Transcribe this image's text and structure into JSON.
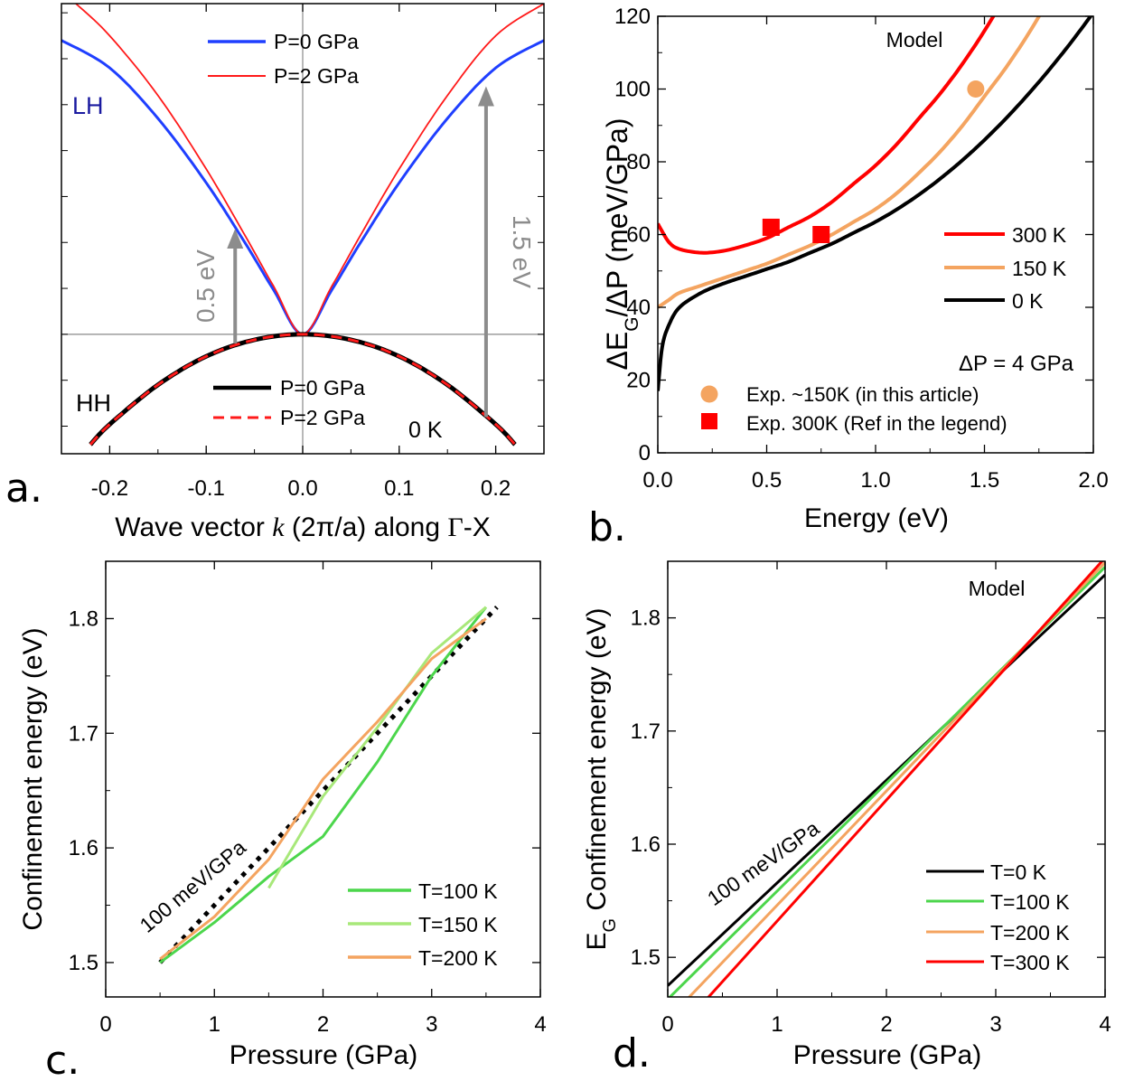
{
  "figure": {
    "panel_labels": [
      "a.",
      "b.",
      "c.",
      "d."
    ]
  },
  "chart_data": [
    {
      "panel": "a.",
      "type": "line",
      "xlabel": "Wave vector k (2π/a) along Γ-X",
      "xlim": [
        -0.25,
        0.25
      ],
      "ylim": [
        -0.13,
        0.36
      ],
      "x_ticks": [
        "-0.2",
        "-0.1",
        "0.0",
        "0.1",
        "0.2"
      ],
      "y_tick_labels_shown": false,
      "band_labels": [
        "LH",
        "HH"
      ],
      "temperature_label": "0 K",
      "arrows": [
        {
          "label": "0.5 eV",
          "x": -0.07,
          "from": -0.01,
          "to": 0.115
        },
        {
          "label": "1.5 eV",
          "x": 0.19,
          "from": -0.09,
          "to": 0.27
        }
      ],
      "series": [
        {
          "name": "P=0 GPa",
          "group": "LH",
          "color": "#1f3fff",
          "x": [
            -0.25,
            -0.2,
            -0.15,
            -0.1,
            -0.06,
            -0.03,
            0,
            0.03,
            0.06,
            0.1,
            0.15,
            0.2,
            0.25
          ],
          "y": [
            0.32,
            0.29,
            0.235,
            0.165,
            0.1,
            0.048,
            0,
            0.048,
            0.1,
            0.165,
            0.235,
            0.29,
            0.32
          ]
        },
        {
          "name": "P=2 GPa",
          "group": "LH",
          "color": "#ff1a1a",
          "x": [
            -0.235,
            -0.2,
            -0.15,
            -0.1,
            -0.06,
            -0.03,
            0,
            0.03,
            0.06,
            0.1,
            0.15,
            0.2,
            0.25
          ],
          "y": [
            0.36,
            0.325,
            0.26,
            0.18,
            0.108,
            0.052,
            0,
            0.052,
            0.108,
            0.18,
            0.26,
            0.325,
            0.36
          ]
        },
        {
          "name": "P=0 GPa",
          "group": "HH",
          "color": "#000000",
          "x": [
            -0.22,
            -0.2,
            -0.15,
            -0.1,
            -0.05,
            0,
            0.05,
            0.1,
            0.15,
            0.2,
            0.22
          ],
          "y": [
            -0.12,
            -0.098,
            -0.055,
            -0.024,
            -0.006,
            0,
            -0.006,
            -0.024,
            -0.055,
            -0.098,
            -0.12
          ]
        },
        {
          "name": "P=2 GPa",
          "group": "HH",
          "color": "#ff1a1a",
          "dashed": true,
          "x": [
            -0.22,
            -0.2,
            -0.15,
            -0.1,
            -0.05,
            0,
            0.05,
            0.1,
            0.15,
            0.2,
            0.22
          ],
          "y": [
            -0.12,
            -0.098,
            -0.055,
            -0.024,
            -0.006,
            0,
            -0.006,
            -0.024,
            -0.055,
            -0.098,
            -0.12
          ]
        }
      ]
    },
    {
      "panel": "b.",
      "type": "line",
      "title": "Model",
      "xlabel": "Energy (eV)",
      "ylabel": "ΔEG/ΔP (meV/GPa)",
      "xlim": [
        0,
        2
      ],
      "ylim": [
        0,
        120
      ],
      "x_ticks": [
        "0.0",
        "0.5",
        "1.0",
        "1.5",
        "2.0"
      ],
      "y_ticks": [
        "0",
        "20",
        "40",
        "60",
        "80",
        "100",
        "120"
      ],
      "annotation": "ΔP = 4 GPa",
      "series": [
        {
          "name": "300 K",
          "color": "#ff0000",
          "x": [
            0,
            0.05,
            0.1,
            0.2,
            0.3,
            0.4,
            0.5,
            0.6,
            0.7,
            0.8,
            0.9,
            1.0,
            1.1,
            1.2,
            1.3,
            1.4,
            1.5,
            1.6
          ],
          "y": [
            63,
            58,
            56,
            55,
            55.5,
            57,
            59,
            62,
            65,
            69,
            74,
            79,
            85,
            92,
            99,
            107,
            116,
            126
          ]
        },
        {
          "name": "150 K",
          "color": "#f4a460",
          "x": [
            0,
            0.05,
            0.1,
            0.2,
            0.3,
            0.4,
            0.5,
            0.6,
            0.7,
            0.8,
            0.9,
            1.0,
            1.1,
            1.2,
            1.3,
            1.4,
            1.5,
            1.6,
            1.7,
            1.8
          ],
          "y": [
            40,
            42,
            44,
            46,
            48,
            50,
            52,
            54.5,
            57,
            60,
            63.5,
            67,
            71.5,
            77,
            83,
            90,
            98,
            106,
            115,
            125
          ]
        },
        {
          "name": "0 K",
          "color": "#000000",
          "x": [
            0,
            0.02,
            0.05,
            0.1,
            0.2,
            0.3,
            0.4,
            0.5,
            0.6,
            0.7,
            0.8,
            0.9,
            1.0,
            1.1,
            1.2,
            1.3,
            1.4,
            1.5,
            1.6,
            1.7,
            1.8,
            1.9,
            2.0
          ],
          "y": [
            17,
            29,
            35,
            40,
            44,
            46.5,
            48.5,
            50.5,
            52.5,
            55,
            57.5,
            60.5,
            63.5,
            67,
            71,
            75.5,
            80.5,
            86,
            92,
            98.5,
            105.5,
            113,
            121
          ]
        }
      ],
      "points": [
        {
          "name": "Exp. ~150K (in this article)",
          "marker": "circle",
          "color": "#f4a460",
          "x": [
            1.46
          ],
          "y": [
            100
          ]
        },
        {
          "name": "Exp. 300K (Ref in the legend)",
          "marker": "square",
          "color": "#ff0000",
          "x": [
            0.52,
            0.75
          ],
          "y": [
            62,
            60
          ]
        }
      ]
    },
    {
      "panel": "c.",
      "type": "line",
      "xlabel": "Pressure (GPa)",
      "ylabel": "Confinement energy (eV)",
      "xlim": [
        0,
        4
      ],
      "ylim": [
        1.47,
        1.85
      ],
      "x_ticks": [
        "0",
        "1",
        "2",
        "3",
        "4"
      ],
      "y_ticks": [
        "1.5",
        "1.6",
        "1.7",
        "1.8"
      ],
      "slope_label": "100 meV/GPa",
      "reference_line": {
        "x": [
          0.5,
          3.6
        ],
        "y": [
          1.5,
          1.81
        ]
      },
      "series": [
        {
          "name": "T=100 K",
          "color": "#4cd64c",
          "x": [
            0.5,
            1,
            1.5,
            2,
            2.5,
            3,
            3.5
          ],
          "y": [
            1.5,
            1.535,
            1.575,
            1.61,
            1.675,
            1.75,
            1.81
          ]
        },
        {
          "name": "T=150 K",
          "color": "#a8e87a",
          "x": [
            1.5,
            2,
            2.5,
            3,
            3.5
          ],
          "y": [
            1.565,
            1.645,
            1.705,
            1.77,
            1.81
          ]
        },
        {
          "name": "T=200 K",
          "color": "#f4a460",
          "x": [
            0.5,
            1,
            1.5,
            2,
            2.5,
            3,
            3.5
          ],
          "y": [
            1.503,
            1.54,
            1.59,
            1.66,
            1.71,
            1.765,
            1.8
          ]
        }
      ]
    },
    {
      "panel": "d.",
      "type": "line",
      "title": "Model",
      "xlabel": "Pressure (GPa)",
      "ylabel": "EG Confinement energy (eV)",
      "xlim": [
        0,
        4
      ],
      "ylim": [
        1.465,
        1.85
      ],
      "x_ticks": [
        "0",
        "1",
        "2",
        "3",
        "4"
      ],
      "y_ticks": [
        "1.5",
        "1.6",
        "1.7",
        "1.8"
      ],
      "slope_label": "100 meV/GPa",
      "series": [
        {
          "name": "T=0 K",
          "color": "#000000",
          "x": [
            0,
            4
          ],
          "y": [
            1.475,
            1.838
          ]
        },
        {
          "name": "T=100 K",
          "color": "#4cd64c",
          "x": [
            0,
            4
          ],
          "y": [
            1.463,
            1.845
          ]
        },
        {
          "name": "T=200 K",
          "color": "#f4a460",
          "x": [
            0,
            4
          ],
          "y": [
            1.445,
            1.849
          ]
        },
        {
          "name": "T=300 K",
          "color": "#ff0000",
          "x": [
            0,
            4
          ],
          "y": [
            1.425,
            1.853
          ]
        }
      ]
    }
  ]
}
